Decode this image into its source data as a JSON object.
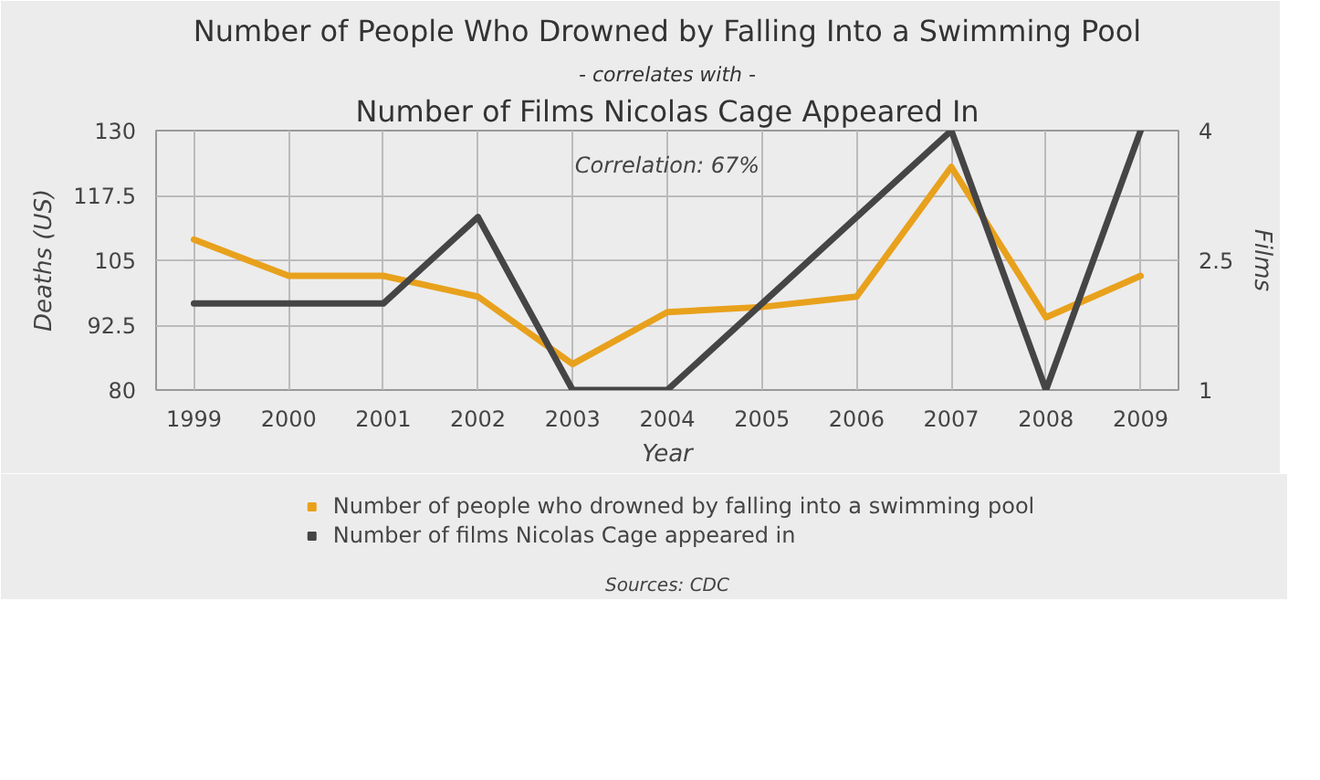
{
  "chart_data": {
    "type": "line",
    "title": "Number of People Who Drowned by Falling Into a Swimming Pool",
    "subtitle": [
      "- correlates with -",
      "Number of Films Nicolas Cage Appeared In"
    ],
    "xlabel": "Year",
    "ylabel": "Deaths (US)",
    "y2label": "Films",
    "x": [
      1999,
      2000,
      2001,
      2002,
      2003,
      2004,
      2005,
      2006,
      2007,
      2008,
      2009
    ],
    "series": [
      {
        "name": "Number of people who drowned by falling into a swimming pool",
        "color": "#e8a11c",
        "values": [
          109,
          102,
          102,
          98,
          85,
          95,
          96,
          98,
          123,
          94,
          102
        ]
      },
      {
        "name": "Number of films Nicolas Cage appeared in",
        "color": "#454545",
        "axis": "y2",
        "values": [
          2,
          2,
          2,
          3,
          1,
          1,
          2,
          3,
          4,
          1,
          4
        ]
      }
    ],
    "xlim": [
      1998.6,
      2009.4
    ],
    "xticks": [
      1999,
      2000,
      2001,
      2002,
      2003,
      2004,
      2005,
      2006,
      2007,
      2008,
      2009
    ],
    "ylim": [
      80,
      130
    ],
    "yticks": [
      80,
      92.5,
      105,
      117.5,
      130
    ],
    "y2lim": [
      1,
      4
    ],
    "y2ticks": [
      1,
      2.5,
      4
    ],
    "grid": true,
    "legend": "bottom",
    "line_style": "solid",
    "annotations": [
      "Correlation: 67%",
      "Sources: CDC"
    ]
  }
}
